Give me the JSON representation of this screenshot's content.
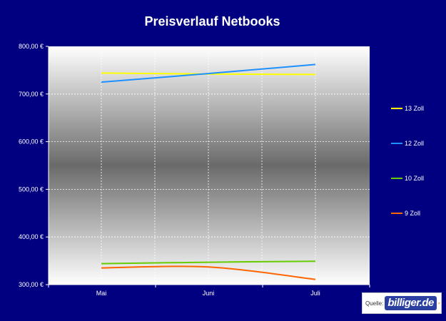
{
  "chart_data": {
    "type": "line",
    "title": "Preisverlauf Netbooks",
    "categories": [
      "Mai",
      "Juni",
      "Juli"
    ],
    "y_ticks": [
      "800,00 €",
      "700,00 €",
      "600,00 €",
      "500,00 €",
      "400,00 €",
      "300,00 €"
    ],
    "ylim": [
      300,
      800
    ],
    "grid": true,
    "legend_position": "right",
    "series": [
      {
        "name": "13 Zoll",
        "color": "#ffff00",
        "values": [
          744,
          742,
          741
        ]
      },
      {
        "name": "12 Zoll",
        "color": "#1e90ff",
        "values": [
          725,
          743,
          762
        ]
      },
      {
        "name": "10 Zoll",
        "color": "#66cc00",
        "values": [
          344,
          347,
          349
        ]
      },
      {
        "name": "9 Zoll",
        "color": "#ff6600",
        "values": [
          335,
          337,
          311
        ]
      }
    ]
  },
  "source": {
    "label": "Quelle:",
    "logo": "billiger.de"
  }
}
